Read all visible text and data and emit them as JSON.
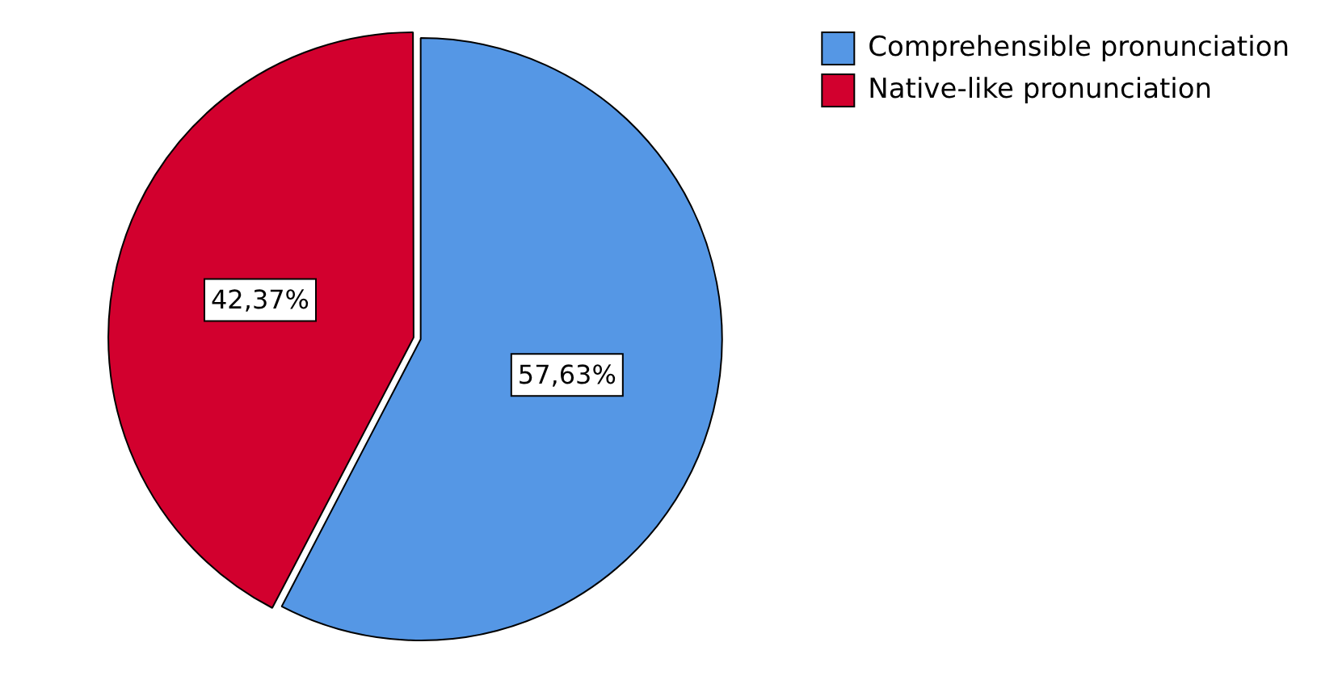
{
  "chart_data": {
    "type": "pie",
    "categories": [
      "Comprehensible pronunciation",
      "Native-like pronunciation"
    ],
    "values": [
      57.63,
      42.37
    ],
    "colors": [
      "#5597e5",
      "#d2002e"
    ],
    "value_labels": [
      "57,63%",
      "42,37%"
    ],
    "legend": "top right"
  }
}
